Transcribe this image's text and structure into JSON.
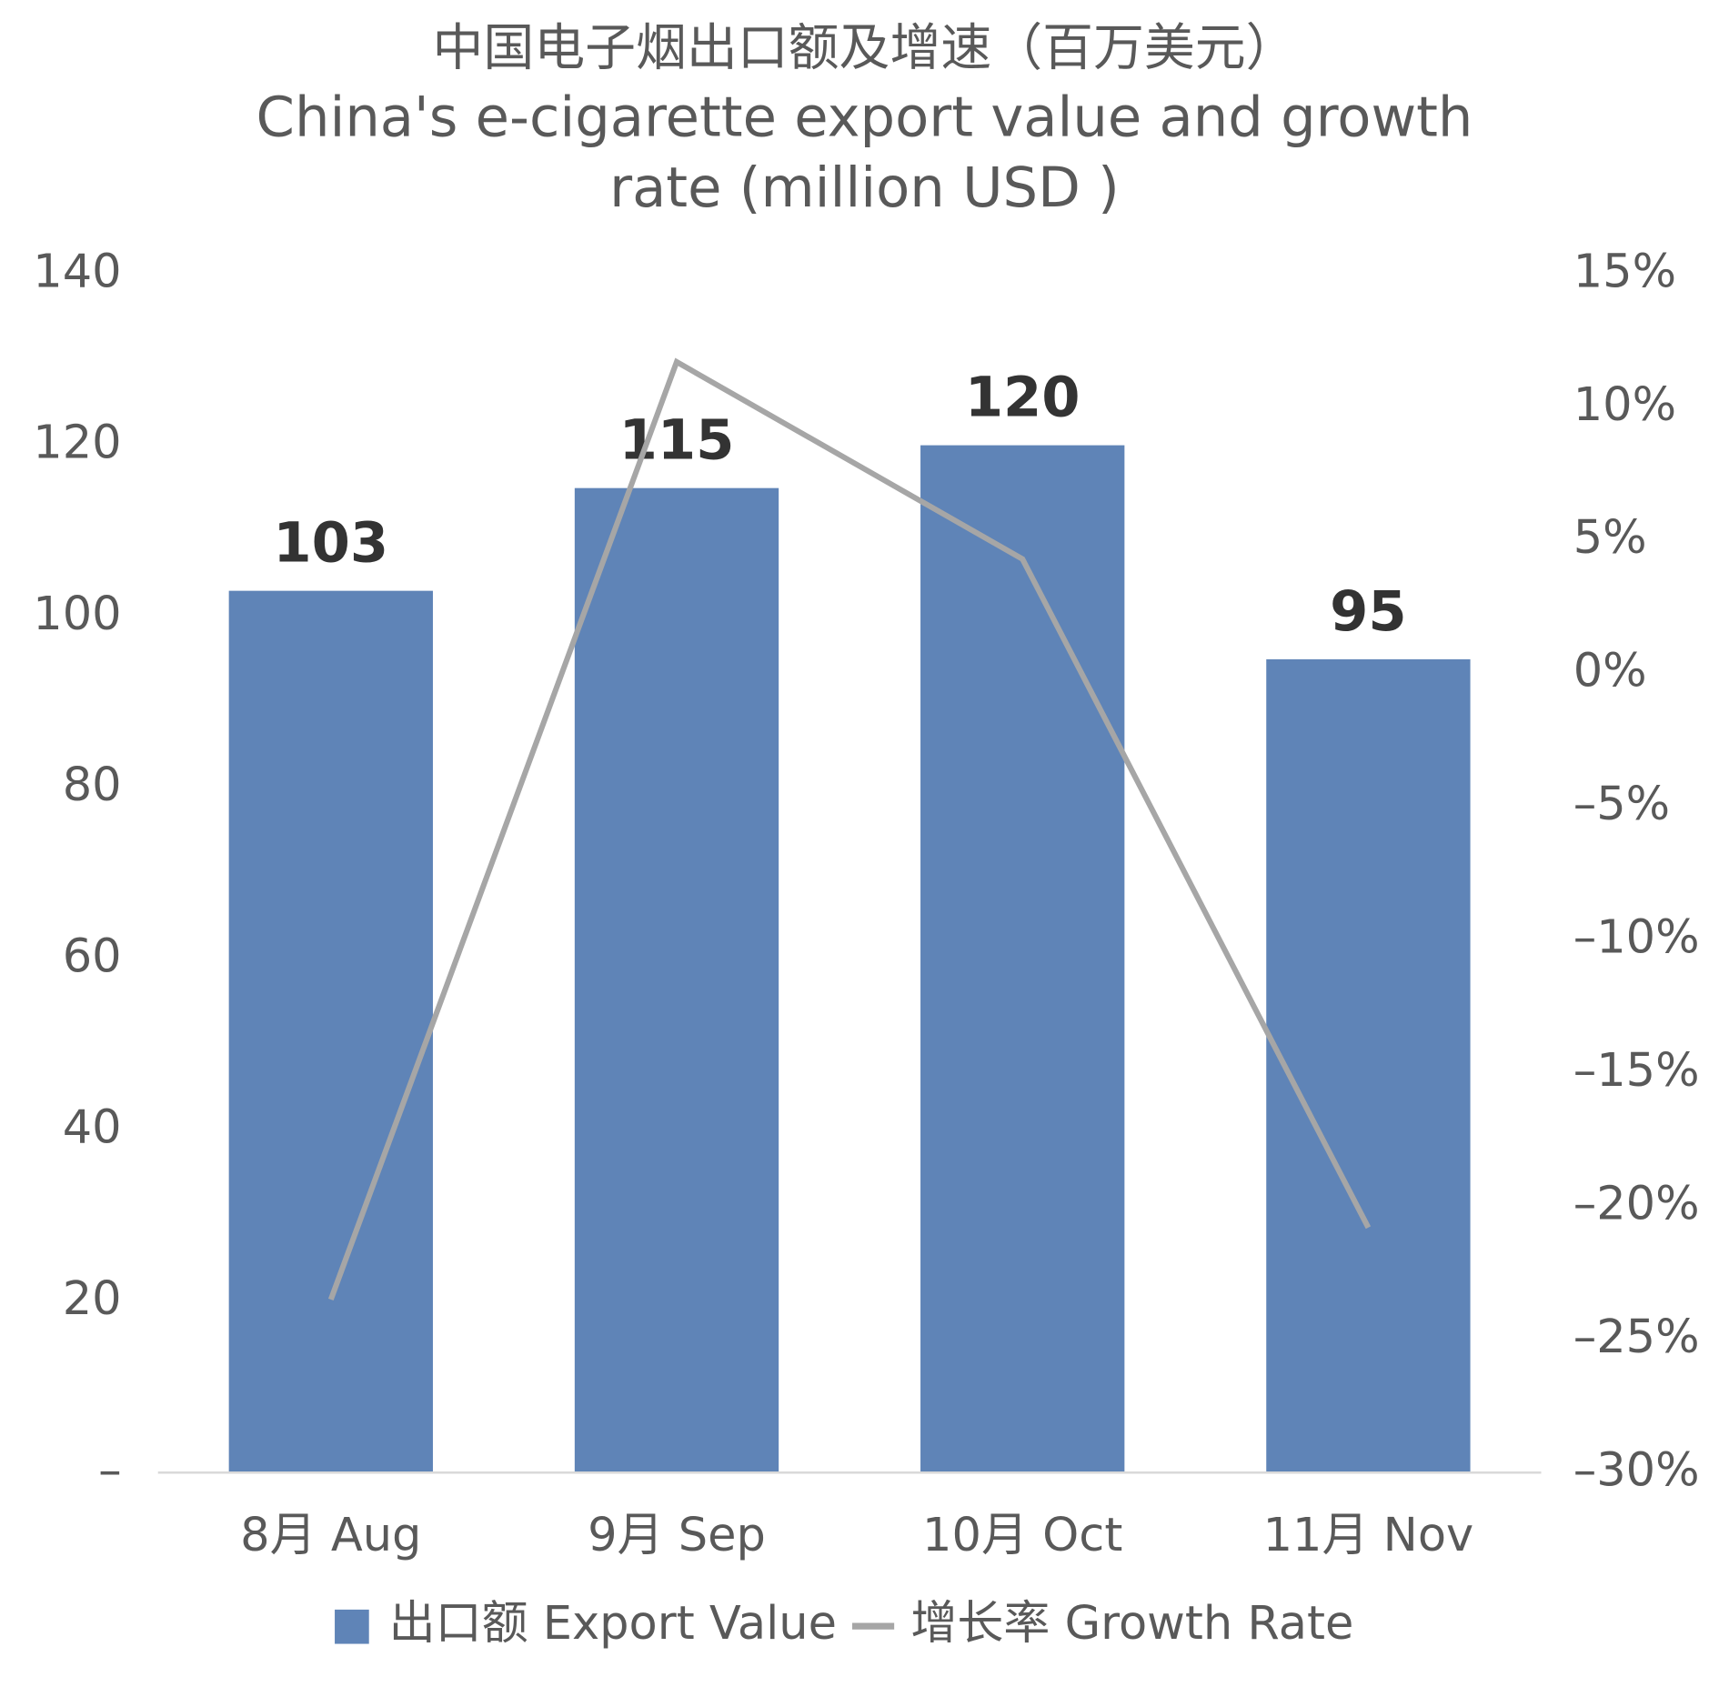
{
  "chart_data": {
    "type": "bar-line",
    "title": "中国电子烟出口额及增速（百万美元）",
    "subtitle": "China's e-cigarette export value and growth rate (million USD )",
    "categories": [
      "8月 Aug",
      "9月 Sep",
      "10月 Oct",
      "11月 Nov"
    ],
    "series": [
      {
        "name": "出口额 Export Value",
        "type": "bar",
        "color": "#5f84b7",
        "values": [
          103,
          115,
          120,
          95
        ]
      },
      {
        "name": "增长率 Growth Rate",
        "type": "line",
        "axis": "y2",
        "color": "#a6a6a6",
        "values": [
          -23.5,
          11.7,
          4.3,
          -20.8
        ]
      }
    ],
    "ylim": [
      0,
      140
    ],
    "yticks": [
      {
        "value": 0,
        "label": "–"
      },
      20,
      40,
      60,
      80,
      100,
      120,
      140
    ],
    "y2lim": [
      -30,
      15
    ],
    "y2ticks": [
      {
        "value": -30,
        "label": "–30%"
      },
      {
        "value": -25,
        "label": "–25%"
      },
      {
        "value": -20,
        "label": "–20%"
      },
      {
        "value": -15,
        "label": "–15%"
      },
      {
        "value": -10,
        "label": "–10%"
      },
      {
        "value": -5,
        "label": "–5%"
      },
      {
        "value": 0,
        "label": "0%"
      },
      {
        "value": 5,
        "label": "5%"
      },
      {
        "value": 10,
        "label": "10%"
      },
      {
        "value": 15,
        "label": "15%"
      }
    ],
    "grid": false,
    "legend": "bottom"
  }
}
